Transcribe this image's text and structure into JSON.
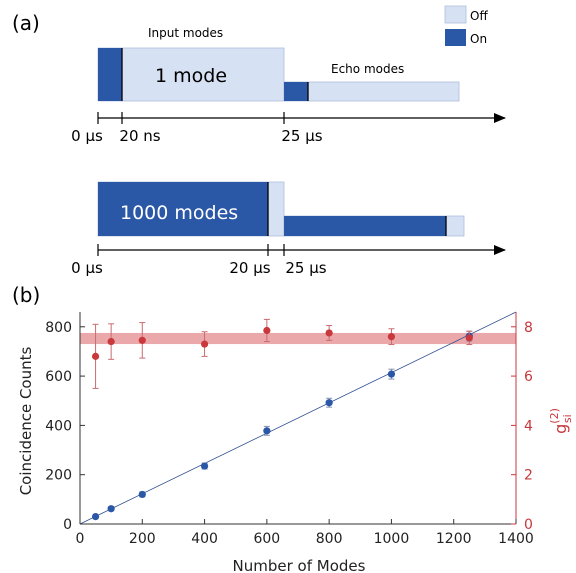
{
  "colors": {
    "on": "#2b57a7",
    "off": "#d6e1f3",
    "off_stroke": "#aebfdd",
    "counts": "#2b57a7",
    "g2": "#c8383c",
    "band": "#e8999c",
    "axis": "#333333"
  },
  "panel_a": {
    "label": "(a)",
    "legend": {
      "off": "Off",
      "on": "On"
    },
    "top": {
      "input_title": "Input modes",
      "mode_label": "1 mode",
      "echo_title": "Echo modes",
      "ticks": [
        "0 μs",
        "20 ns",
        "25 μs"
      ]
    },
    "bottom": {
      "mode_label": "1000 modes",
      "ticks": [
        "0 μs",
        "20 μs",
        "25 μs"
      ]
    }
  },
  "panel_b": {
    "label": "(b)"
  },
  "chart_data": {
    "type": "scatter",
    "xlabel": "Number of Modes",
    "ylabel": "Coincidence Counts",
    "y2label_main": "g",
    "y2label_sup": "(2)",
    "y2label_sub": "si",
    "xlim": [
      0,
      1400
    ],
    "ylim": [
      0,
      860
    ],
    "y2lim": [
      0,
      8.6
    ],
    "xticks": [
      0,
      200,
      400,
      600,
      800,
      1000,
      1200,
      1400
    ],
    "yticks": [
      0,
      200,
      400,
      600,
      800
    ],
    "y2ticks": [
      0,
      2,
      4,
      6,
      8
    ],
    "grid": false,
    "series": [
      {
        "axis": "left",
        "x": [
          50,
          100,
          200,
          400,
          600,
          800,
          1000,
          1250
        ],
        "y": [
          30,
          62,
          120,
          235,
          378,
          492,
          608,
          762
        ],
        "yerr": [
          6,
          8,
          10,
          12,
          18,
          18,
          20,
          20
        ]
      },
      {
        "axis": "right",
        "x": [
          50,
          100,
          200,
          400,
          600,
          800,
          1000,
          1250
        ],
        "y": [
          6.8,
          7.4,
          7.45,
          7.3,
          7.85,
          7.75,
          7.6,
          7.55
        ],
        "yerr": [
          1.3,
          0.72,
          0.72,
          0.5,
          0.45,
          0.3,
          0.32,
          0.27
        ]
      }
    ],
    "fit_line": {
      "x": [
        0,
        1400
      ],
      "y": [
        0,
        860
      ]
    },
    "band": {
      "low": 7.3,
      "high": 7.75
    }
  }
}
